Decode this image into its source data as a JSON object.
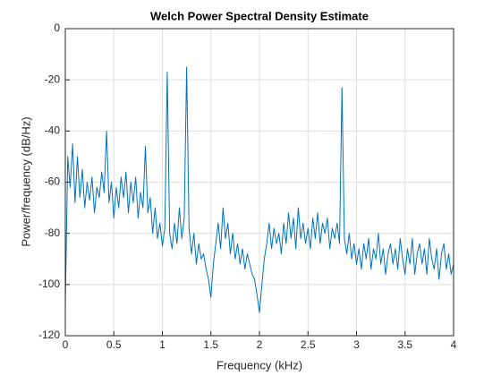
{
  "chart_data": {
    "type": "line",
    "title": "Welch Power Spectral Density Estimate",
    "x_label": "Frequency (kHz)",
    "y_label": "Power/frequency (dB/Hz)",
    "xlim": [
      0,
      4
    ],
    "ylim": [
      -120,
      0
    ],
    "xticks": [
      0,
      0.5,
      1,
      1.5,
      2,
      2.5,
      3,
      3.5,
      4
    ],
    "yticks": [
      -120,
      -100,
      -80,
      -60,
      -40,
      -20,
      0
    ],
    "grid": true,
    "series": [
      {
        "color": "#0072bd",
        "x": [
          0,
          0.025,
          0.05,
          0.075,
          0.1,
          0.125,
          0.15,
          0.175,
          0.2,
          0.225,
          0.25,
          0.275,
          0.3,
          0.325,
          0.35,
          0.375,
          0.4,
          0.425,
          0.45,
          0.475,
          0.5,
          0.525,
          0.55,
          0.575,
          0.6,
          0.625,
          0.65,
          0.675,
          0.7,
          0.725,
          0.75,
          0.775,
          0.8,
          0.825,
          0.85,
          0.875,
          0.9,
          0.925,
          0.95,
          0.975,
          1.0,
          1.025,
          1.05,
          1.075,
          1.1,
          1.125,
          1.15,
          1.175,
          1.2,
          1.225,
          1.25,
          1.275,
          1.3,
          1.325,
          1.35,
          1.375,
          1.4,
          1.425,
          1.45,
          1.475,
          1.5,
          1.525,
          1.55,
          1.575,
          1.6,
          1.625,
          1.65,
          1.675,
          1.7,
          1.725,
          1.75,
          1.775,
          1.8,
          1.825,
          1.85,
          1.875,
          1.9,
          1.925,
          1.95,
          1.975,
          2.0,
          2.025,
          2.05,
          2.075,
          2.1,
          2.125,
          2.15,
          2.175,
          2.2,
          2.225,
          2.25,
          2.275,
          2.3,
          2.325,
          2.35,
          2.375,
          2.4,
          2.425,
          2.45,
          2.475,
          2.5,
          2.525,
          2.55,
          2.575,
          2.6,
          2.625,
          2.65,
          2.675,
          2.7,
          2.725,
          2.75,
          2.775,
          2.8,
          2.825,
          2.85,
          2.875,
          2.9,
          2.925,
          2.95,
          2.975,
          3.0,
          3.025,
          3.05,
          3.075,
          3.1,
          3.125,
          3.15,
          3.175,
          3.2,
          3.225,
          3.25,
          3.275,
          3.3,
          3.325,
          3.35,
          3.375,
          3.4,
          3.425,
          3.45,
          3.475,
          3.5,
          3.525,
          3.55,
          3.575,
          3.6,
          3.625,
          3.65,
          3.675,
          3.7,
          3.725,
          3.75,
          3.775,
          3.8,
          3.825,
          3.85,
          3.875,
          3.9,
          3.925,
          3.95,
          3.975,
          4.0
        ],
        "values": [
          -108,
          -50,
          -62,
          -45,
          -68,
          -50,
          -66,
          -55,
          -70,
          -60,
          -67,
          -58,
          -72,
          -62,
          -66,
          -56,
          -64,
          -40,
          -68,
          -60,
          -74,
          -62,
          -70,
          -58,
          -66,
          -56,
          -72,
          -60,
          -68,
          -58,
          -74,
          -64,
          -70,
          -46,
          -72,
          -66,
          -80,
          -70,
          -82,
          -76,
          -85,
          -78,
          -17,
          -80,
          -86,
          -76,
          -84,
          -70,
          -82,
          -74,
          -15,
          -78,
          -88,
          -80,
          -92,
          -84,
          -90,
          -88,
          -94,
          -98,
          -105,
          -92,
          -84,
          -76,
          -86,
          -70,
          -82,
          -76,
          -88,
          -80,
          -90,
          -84,
          -92,
          -86,
          -94,
          -88,
          -92,
          -96,
          -98,
          -104,
          -111,
          -100,
          -90,
          -84,
          -76,
          -86,
          -78,
          -84,
          -80,
          -88,
          -76,
          -84,
          -72,
          -82,
          -74,
          -86,
          -70,
          -82,
          -76,
          -84,
          -78,
          -86,
          -74,
          -82,
          -72,
          -84,
          -76,
          -80,
          -74,
          -86,
          -78,
          -82,
          -76,
          -84,
          -23,
          -82,
          -88,
          -80,
          -90,
          -84,
          -92,
          -86,
          -94,
          -84,
          -90,
          -82,
          -94,
          -86,
          -90,
          -80,
          -92,
          -86,
          -96,
          -88,
          -84,
          -92,
          -86,
          -94,
          -82,
          -90,
          -96,
          -86,
          -92,
          -82,
          -96,
          -88,
          -84,
          -92,
          -86,
          -96,
          -82,
          -90,
          -94,
          -86,
          -98,
          -88,
          -84,
          -94,
          -88,
          -96,
          -92
        ]
      }
    ]
  }
}
